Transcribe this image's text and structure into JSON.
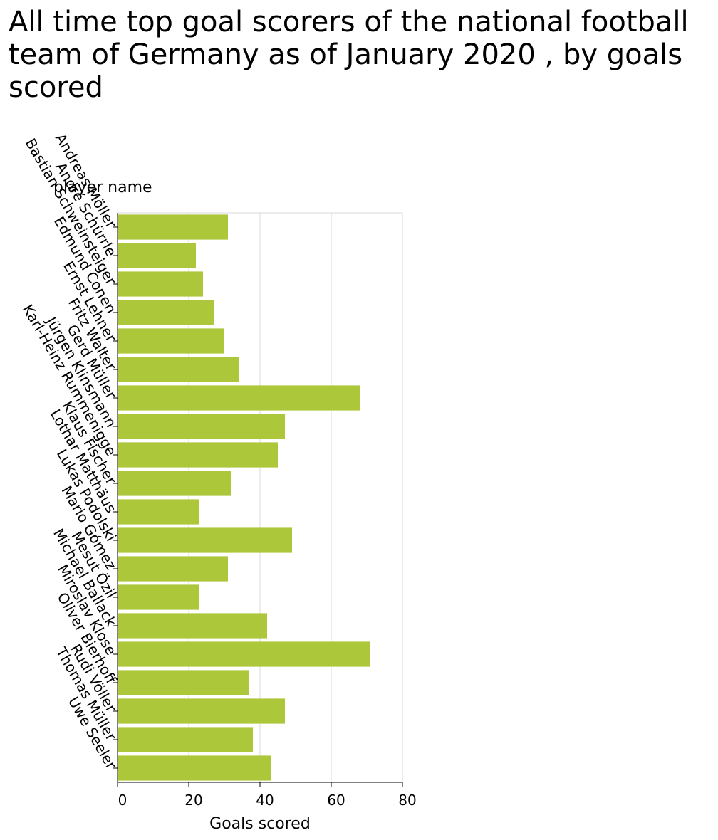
{
  "chart_data": {
    "type": "bar",
    "orientation": "horizontal",
    "title": "All time top goal scorers of the national football team of Germany as of January 2020 , by goals scored",
    "xlabel": "Goals scored",
    "ylabel": "player name",
    "xlim": [
      0,
      80
    ],
    "xticks": [
      "0",
      "20",
      "40",
      "60",
      "80"
    ],
    "grid": "vertical",
    "bar_color": "#adc73a",
    "categories": [
      "Andreas Möller",
      "André Schürrle",
      "Bastian Schweinsteiger",
      "Edmund Conen",
      "Ernst Lehner",
      "Fritz Walter",
      "Gerd Müller",
      "Jürgen Klinsmann",
      "Karl-Heinz Rummenigge",
      "Klaus Fischer",
      "Lothar Matthäus",
      "Lukas Podolski",
      "Mario Gómez",
      "Mesut Özil",
      "Michael Ballack",
      "Miroslav Klose",
      "Oliver Bierhoff",
      "Rudi Völler",
      "Thomas Müller",
      "Uwe Seeler"
    ],
    "values": [
      31,
      22,
      24,
      27,
      30,
      34,
      68,
      47,
      45,
      32,
      23,
      49,
      31,
      23,
      42,
      71,
      37,
      47,
      38,
      43
    ]
  }
}
